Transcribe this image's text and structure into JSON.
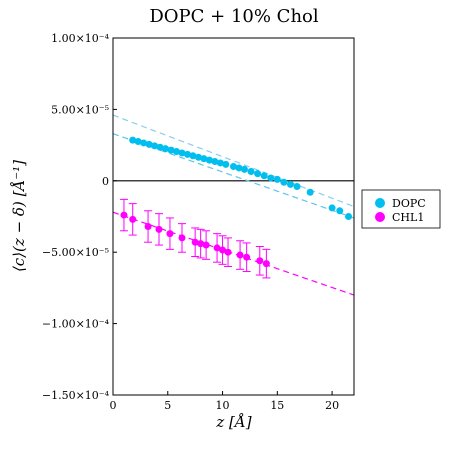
{
  "chart_data": {
    "type": "scatter",
    "title": "DOPC + 10% Chol",
    "xlabel": "z  [Å]",
    "ylabel": "⟨c⟩(z − δ)  [Å⁻¹]",
    "xlim": [
      0,
      22
    ],
    "ylim": [
      -0.00015,
      0.0001
    ],
    "x_ticks": [
      0,
      5,
      10,
      15,
      20
    ],
    "x_tick_labels": [
      "0",
      "5",
      "10",
      "15",
      "20"
    ],
    "y_ticks": [
      0.0001,
      5e-05,
      0,
      -5e-05,
      -0.0001,
      -0.00015
    ],
    "y_tick_labels": [
      "1.00×10⁻⁴",
      "5.00×10⁻⁵",
      "0",
      "−5.00×10⁻⁵",
      "−1.00×10⁻⁴",
      "−1.50×10⁻⁴"
    ],
    "zero_line": true,
    "grid": false,
    "legend_position": "right-outside",
    "series": [
      {
        "name": "DOPC",
        "color": "#00BFEF",
        "x": [
          1.8,
          2.3,
          2.8,
          3.3,
          3.8,
          4.3,
          4.8,
          5.3,
          5.8,
          6.3,
          6.8,
          7.3,
          7.8,
          8.3,
          8.8,
          9.3,
          9.8,
          10.3,
          11.0,
          11.5,
          12.0,
          12.6,
          13.2,
          13.8,
          14.4,
          15.0,
          15.6,
          16.2,
          16.8,
          18.0,
          20.0,
          20.7,
          21.5
        ],
        "y": [
          2.85e-05,
          2.75e-05,
          2.65e-05,
          2.55e-05,
          2.45e-05,
          2.35e-05,
          2.25e-05,
          2.15e-05,
          2.05e-05,
          1.95e-05,
          1.85e-05,
          1.75e-05,
          1.65e-05,
          1.55e-05,
          1.45e-05,
          1.35e-05,
          1.25e-05,
          1.15e-05,
          1e-05,
          9e-06,
          8e-06,
          6.5e-06,
          5e-06,
          3.5e-06,
          2e-06,
          1e-06,
          -1e-06,
          -2.5e-06,
          -4e-06,
          -8e-06,
          -1.9e-05,
          -2.1e-05,
          -2.5e-05
        ],
        "fits": [
          {
            "x": [
              0,
              22
            ],
            "y": [
              4.6e-05,
              -1.8e-05
            ],
            "color": "#87CEEB"
          },
          {
            "x": [
              0,
              22
            ],
            "y": [
              3.3e-05,
              -2.6e-05
            ],
            "color": "#5CC5EC"
          }
        ]
      },
      {
        "name": "CHL1",
        "color": "#FF00FF",
        "x": [
          1.0,
          1.8,
          3.2,
          4.2,
          5.2,
          6.3,
          7.5,
          8.0,
          8.5,
          9.5,
          10.0,
          10.5,
          11.6,
          12.2,
          13.4,
          14.0
        ],
        "y": [
          -2.4e-05,
          -2.7e-05,
          -3.2e-05,
          -3.4e-05,
          -3.7e-05,
          -4e-05,
          -4.3e-05,
          -4.4e-05,
          -4.5e-05,
          -4.7e-05,
          -4.85e-05,
          -5e-05,
          -5.2e-05,
          -5.35e-05,
          -5.6e-05,
          -5.8e-05
        ],
        "yerr": [
          1.1e-05,
          1.1e-05,
          1.1e-05,
          1.1e-05,
          1.1e-05,
          1e-05,
          1e-05,
          1e-05,
          1e-05,
          1e-05,
          1e-05,
          1e-05,
          1e-05,
          1e-05,
          1e-05,
          1e-05
        ],
        "fits": [
          {
            "x": [
              0,
              22
            ],
            "y": [
              -2.2e-05,
              -8e-05
            ],
            "color": "#FF00FF"
          }
        ]
      }
    ]
  }
}
